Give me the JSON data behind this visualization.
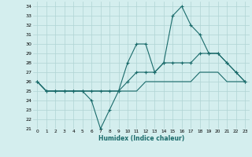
{
  "xlabel": "Humidex (Indice chaleur)",
  "bg_color": "#d4eeee",
  "line_color": "#1a6b6b",
  "grid_color": "#b0d4d4",
  "xlim": [
    -0.5,
    23.5
  ],
  "ylim": [
    21,
    34.5
  ],
  "xticks": [
    0,
    1,
    2,
    3,
    4,
    5,
    6,
    7,
    8,
    9,
    10,
    11,
    12,
    13,
    14,
    15,
    16,
    17,
    18,
    19,
    20,
    21,
    22,
    23
  ],
  "yticks": [
    21,
    22,
    23,
    24,
    25,
    26,
    27,
    28,
    29,
    30,
    31,
    32,
    33,
    34
  ],
  "x": [
    0,
    1,
    2,
    3,
    4,
    5,
    6,
    7,
    8,
    9,
    10,
    11,
    12,
    13,
    14,
    15,
    16,
    17,
    18,
    19,
    20,
    21,
    22,
    23
  ],
  "line1": [
    26,
    25,
    25,
    25,
    25,
    25,
    24,
    21,
    23,
    25,
    28,
    30,
    30,
    27,
    28,
    33,
    34,
    32,
    31,
    29,
    29,
    28,
    27,
    26
  ],
  "line2": [
    26,
    25,
    25,
    25,
    25,
    25,
    25,
    25,
    25,
    25,
    26,
    27,
    27,
    27,
    28,
    28,
    28,
    28,
    29,
    29,
    29,
    28,
    27,
    26
  ],
  "line3": [
    26,
    25,
    25,
    25,
    25,
    25,
    25,
    25,
    25,
    25,
    25,
    25,
    26,
    26,
    26,
    26,
    26,
    26,
    27,
    27,
    27,
    26,
    26,
    26
  ]
}
